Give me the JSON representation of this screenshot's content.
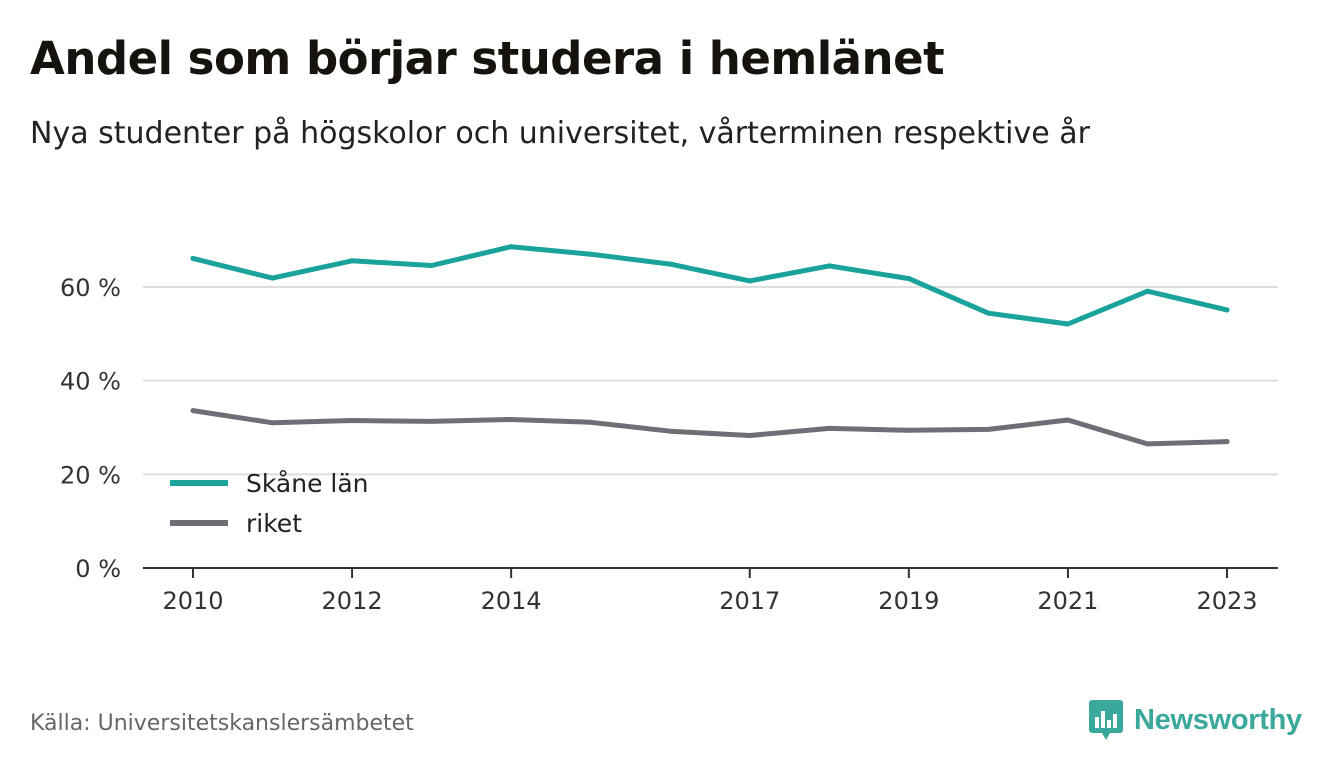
{
  "title": "Andel som börjar studera i hemlänet",
  "subtitle": "Nya studenter på högskolor och universitet, vårterminen respektive år",
  "source": "Källa: Universitetskanslersämbetet",
  "brand": {
    "name": "Newsworthy",
    "icon": "newsworthy-logo-icon",
    "color": "#3aa89a"
  },
  "chart_data": {
    "type": "line",
    "x": [
      2010,
      2011,
      2012,
      2013,
      2014,
      2015,
      2016,
      2017,
      2018,
      2019,
      2020,
      2021,
      2022,
      2023
    ],
    "x_tick_labels": [
      "2010",
      "2012",
      "2014",
      "2017",
      "2019",
      "2021",
      "2023"
    ],
    "y_ticks": [
      0,
      20,
      40,
      60
    ],
    "y_tick_labels": [
      "0 %",
      "20 %",
      "40 %",
      "60 %"
    ],
    "ylim": [
      0,
      72
    ],
    "grid": true,
    "legend_position": "bottom-left",
    "series": [
      {
        "name": "Skåne län",
        "color": "#19a39a",
        "values": [
          66.1,
          61.9,
          65.6,
          64.6,
          68.6,
          67.0,
          64.9,
          61.3,
          64.5,
          61.8,
          54.4,
          52.1,
          59.1,
          55.1
        ]
      },
      {
        "name": "riket",
        "color": "#6f6e76",
        "values": [
          33.6,
          31.0,
          31.5,
          31.3,
          31.7,
          31.1,
          29.2,
          28.3,
          29.8,
          29.4,
          29.6,
          31.6,
          26.5,
          27.0
        ]
      }
    ]
  }
}
